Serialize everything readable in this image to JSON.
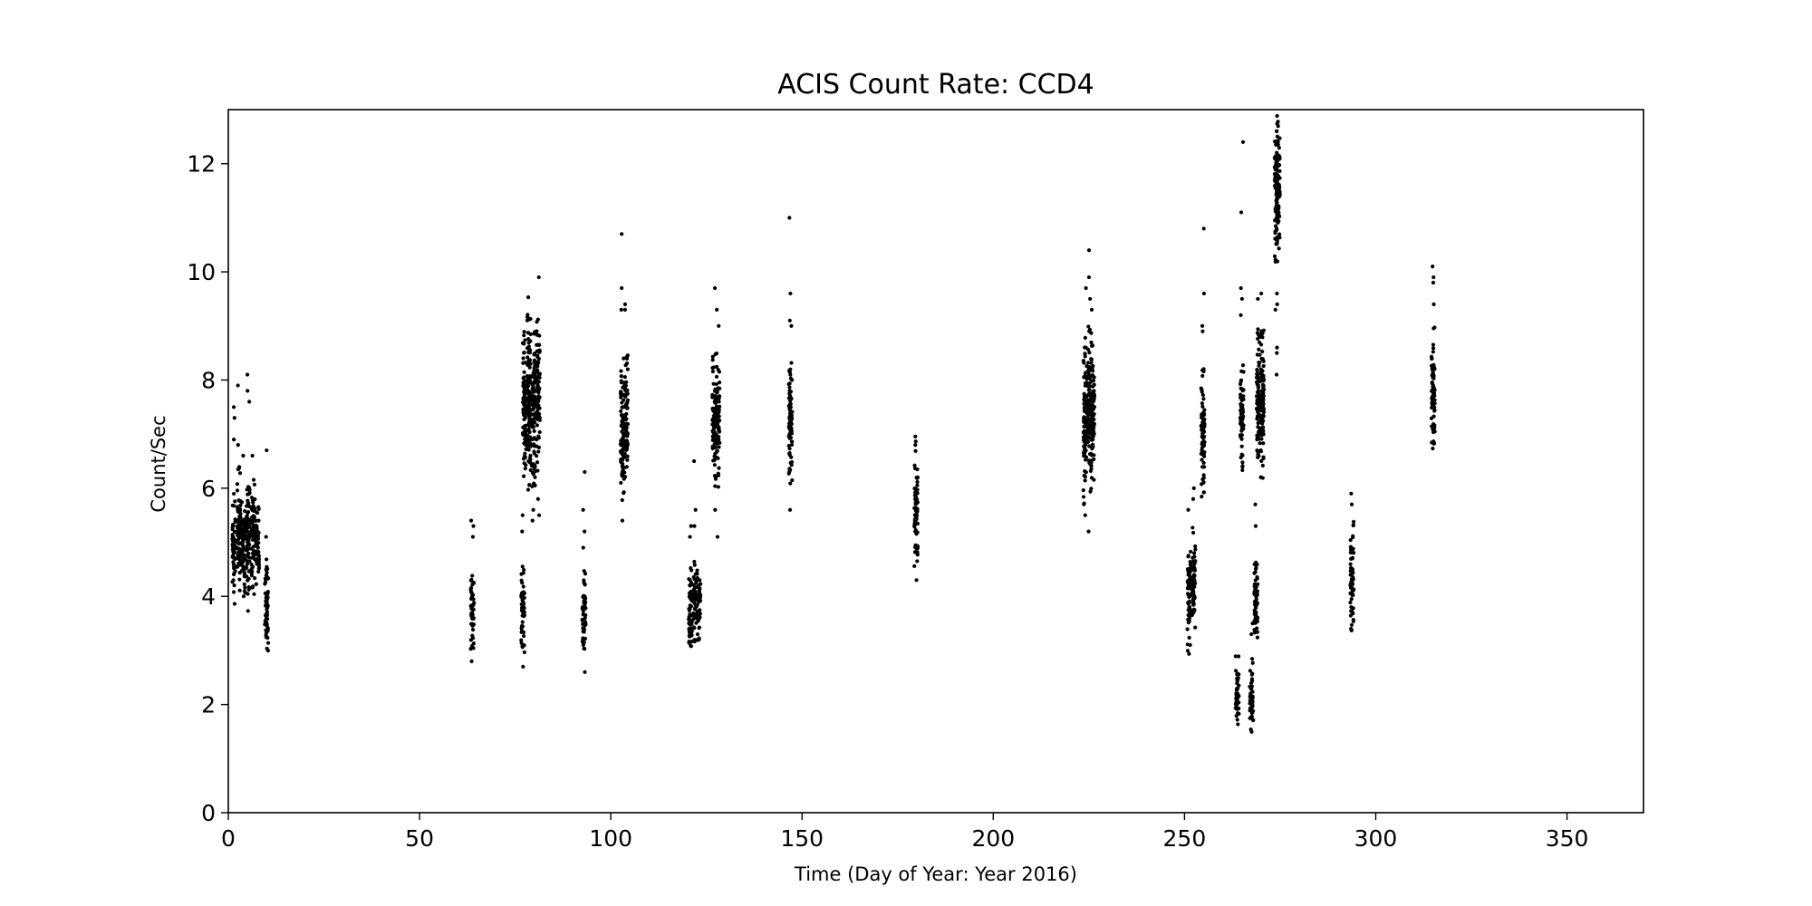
{
  "chart_data": {
    "type": "scatter",
    "title": "ACIS Count Rate: CCD4",
    "xlabel": "Time (Day of Year: Year 2016)",
    "ylabel": "Count/Sec",
    "xlim": [
      0,
      370
    ],
    "ylim": [
      0,
      13
    ],
    "xticks": [
      0,
      50,
      100,
      150,
      200,
      250,
      300,
      350
    ],
    "yticks": [
      0,
      2,
      4,
      6,
      8,
      10,
      12
    ],
    "grid": false,
    "marker_color": "#000000",
    "series": [
      {
        "clusters": [
          {
            "x": 1.5,
            "ymin": 3.8,
            "ymax": 5.9,
            "outliers": [
              7.3,
              7.5,
              6.9
            ]
          },
          {
            "x": 2.8,
            "ymin": 3.9,
            "ymax": 6.4,
            "outliers": [
              7.9,
              6.8
            ]
          },
          {
            "x": 4.0,
            "ymin": 3.9,
            "ymax": 6.0,
            "outliers": [
              6.6
            ]
          },
          {
            "x": 5.2,
            "ymin": 3.7,
            "ymax": 6.4,
            "outliers": [
              8.1,
              7.8,
              7.6
            ]
          },
          {
            "x": 6.5,
            "ymin": 4.0,
            "ymax": 6.2,
            "outliers": [
              6.6
            ]
          },
          {
            "x": 7.6,
            "ymin": 4.2,
            "ymax": 5.8,
            "outliers": []
          },
          {
            "x": 10.0,
            "ymin": 2.7,
            "ymax": 4.8,
            "outliers": [
              6.7,
              5.1
            ]
          },
          {
            "x": 63.8,
            "ymin": 3.0,
            "ymax": 4.6,
            "outliers": [
              5.4,
              5.3,
              5.1,
              2.8
            ]
          },
          {
            "x": 77.0,
            "ymin": 2.9,
            "ymax": 4.7,
            "outliers": [
              5.5,
              5.2,
              2.7
            ]
          },
          {
            "x": 77.4,
            "ymin": 6.1,
            "ymax": 9.0,
            "outliers": []
          },
          {
            "x": 78.6,
            "ymin": 5.8,
            "ymax": 9.6,
            "outliers": []
          },
          {
            "x": 79.8,
            "ymin": 6.0,
            "ymax": 9.1,
            "outliers": [
              5.6,
              5.4
            ]
          },
          {
            "x": 81.0,
            "ymin": 6.3,
            "ymax": 9.3,
            "outliers": [
              9.9,
              5.5,
              5.8
            ]
          },
          {
            "x": 93.0,
            "ymin": 2.9,
            "ymax": 4.5,
            "outliers": [
              6.3,
              5.6,
              5.2,
              4.9,
              2.6
            ]
          },
          {
            "x": 103.0,
            "ymin": 5.7,
            "ymax": 8.4,
            "outliers": [
              9.7,
              10.7,
              9.3,
              5.4
            ]
          },
          {
            "x": 104.0,
            "ymin": 5.9,
            "ymax": 8.5,
            "outliers": [
              9.4,
              9.3
            ]
          },
          {
            "x": 120.8,
            "ymin": 2.7,
            "ymax": 4.6,
            "outliers": [
              5.3,
              5.1
            ]
          },
          {
            "x": 122.0,
            "ymin": 3.1,
            "ymax": 4.7,
            "outliers": [
              6.5,
              5.6,
              5.3
            ]
          },
          {
            "x": 123.0,
            "ymin": 3.0,
            "ymax": 4.6,
            "outliers": []
          },
          {
            "x": 127.0,
            "ymin": 5.8,
            "ymax": 8.5,
            "outliers": [
              9.7,
              5.6
            ]
          },
          {
            "x": 128.0,
            "ymin": 6.0,
            "ymax": 8.5,
            "outliers": [
              9.3,
              9.0,
              5.1
            ]
          },
          {
            "x": 147.0,
            "ymin": 5.9,
            "ymax": 8.5,
            "outliers": [
              11.0,
              9.6,
              9.1,
              9.0,
              5.6
            ]
          },
          {
            "x": 179.8,
            "ymin": 4.5,
            "ymax": 7.0,
            "outliers": [
              4.3
            ]
          },
          {
            "x": 224.0,
            "ymin": 5.7,
            "ymax": 8.8,
            "outliers": [
              9.7,
              5.5
            ]
          },
          {
            "x": 225.2,
            "ymin": 5.9,
            "ymax": 9.0,
            "outliers": [
              10.4,
              9.9,
              9.5,
              5.2
            ]
          },
          {
            "x": 226.0,
            "ymin": 6.0,
            "ymax": 8.8,
            "outliers": [
              9.3
            ]
          },
          {
            "x": 251.2,
            "ymin": 2.9,
            "ymax": 5.1,
            "outliers": [
              5.6
            ]
          },
          {
            "x": 252.4,
            "ymin": 3.1,
            "ymax": 5.3,
            "outliers": [
              6.0,
              5.8
            ]
          },
          {
            "x": 254.8,
            "ymin": 5.8,
            "ymax": 8.3,
            "outliers": [
              10.8,
              9.6,
              9.0,
              8.9
            ]
          },
          {
            "x": 263.8,
            "ymin": 1.5,
            "ymax": 2.9,
            "outliers": []
          },
          {
            "x": 265.0,
            "ymin": 6.2,
            "ymax": 8.3,
            "outliers": [
              12.4,
              11.1,
              9.7,
              9.5,
              9.2
            ]
          },
          {
            "x": 267.5,
            "ymin": 1.4,
            "ymax": 2.9,
            "outliers": [
              3.3,
              3.5
            ]
          },
          {
            "x": 268.7,
            "ymin": 3.0,
            "ymax": 5.0,
            "outliers": [
              5.7,
              5.3
            ]
          },
          {
            "x": 269.3,
            "ymin": 6.3,
            "ymax": 9.0,
            "outliers": [
              9.5
            ]
          },
          {
            "x": 270.3,
            "ymin": 6.1,
            "ymax": 9.1,
            "outliers": [
              9.6
            ]
          },
          {
            "x": 274.0,
            "ymin": 10.0,
            "ymax": 13.0,
            "outliers": [
              9.6,
              9.3,
              8.6,
              8.5,
              8.1
            ]
          },
          {
            "x": 274.5,
            "ymin": 10.4,
            "ymax": 12.9,
            "outliers": [
              9.4
            ]
          },
          {
            "x": 293.8,
            "ymin": 3.2,
            "ymax": 5.5,
            "outliers": [
              5.9,
              5.7
            ]
          },
          {
            "x": 315.0,
            "ymin": 6.6,
            "ymax": 9.0,
            "outliers": [
              10.1,
              9.9,
              9.8,
              9.4
            ]
          }
        ]
      }
    ]
  }
}
